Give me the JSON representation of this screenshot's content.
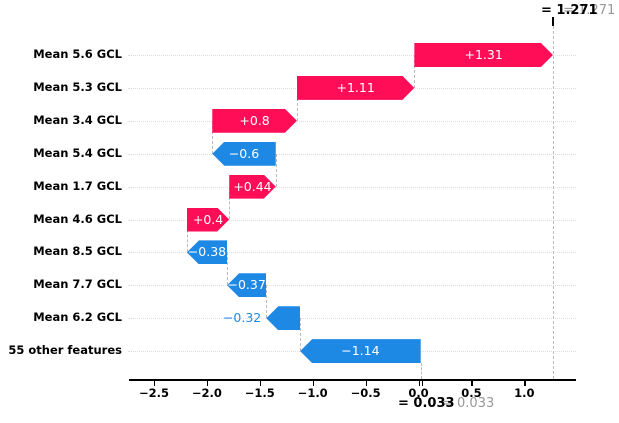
{
  "chart_data": {
    "type": "bar",
    "subtype": "waterfall",
    "title": "",
    "xlabel": "",
    "ylabel": "",
    "fx_value": 1.271,
    "fx_label": "= 1.271",
    "base_value": 0.033,
    "base_label": "= 0.033",
    "xlim": [
      -2.74,
      1.49
    ],
    "grid": "dotted-horizontal-per-row",
    "legend": "none",
    "xticks": [
      {
        "label": "−2.5",
        "value": -2.5
      },
      {
        "label": "−2.0",
        "value": -2.0
      },
      {
        "label": "−1.5",
        "value": -1.5
      },
      {
        "label": "−1.0",
        "value": -1.0
      },
      {
        "label": "−0.5",
        "value": -0.5
      },
      {
        "label": "0.0",
        "value": 0.0
      },
      {
        "label": "0.5",
        "value": 0.5
      },
      {
        "label": "1.0",
        "value": 1.0
      }
    ],
    "features": [
      {
        "label": "Mean 5.6 GCL",
        "value": 1.31,
        "display": "+1.31"
      },
      {
        "label": "Mean 5.3 GCL",
        "value": 1.11,
        "display": "+1.11"
      },
      {
        "label": "Mean 3.4 GCL",
        "value": 0.8,
        "display": "+0.8"
      },
      {
        "label": "Mean 5.4 GCL",
        "value": -0.6,
        "display": "−0.6"
      },
      {
        "label": "Mean 1.7 GCL",
        "value": 0.44,
        "display": "+0.44"
      },
      {
        "label": "Mean 4.6 GCL",
        "value": 0.4,
        "display": "+0.4"
      },
      {
        "label": "Mean 8.5 GCL",
        "value": -0.38,
        "display": "−0.38"
      },
      {
        "label": "Mean 7.7 GCL",
        "value": -0.37,
        "display": "−0.37"
      },
      {
        "label": "Mean 6.2 GCL",
        "value": -0.32,
        "display": "−0.32"
      },
      {
        "label": "55 other features",
        "value": -1.14,
        "display": "−1.14"
      }
    ],
    "colors": {
      "positive": "#ff0d57",
      "negative": "#1e88e5",
      "gray_endpoint_label": "#999999",
      "connector_line": "#bbbbbb",
      "row_gridline": "#dedede",
      "axis": "#000000",
      "background": "#ffffff"
    }
  }
}
